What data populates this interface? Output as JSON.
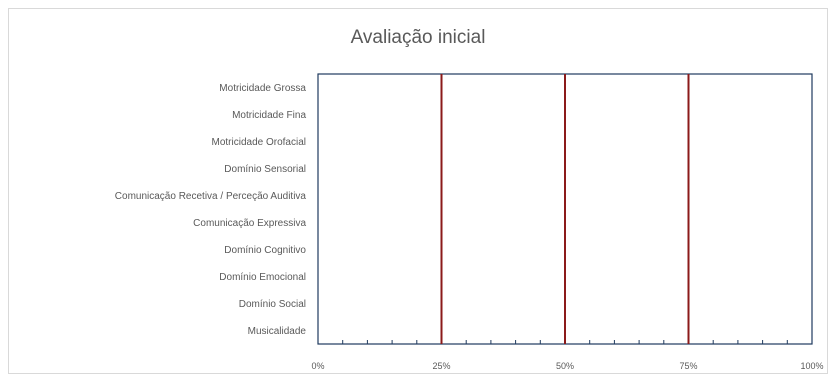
{
  "chart_data": {
    "type": "bar",
    "orientation": "horizontal",
    "title": "Avaliação inicial",
    "categories": [
      "Motricidade Grossa",
      "Motricidade Fina",
      "Motricidade Orofacial",
      "Domínio Sensorial",
      "Comunicação Recetiva / Perceção Auditiva",
      "Comunicação Expressiva",
      "Domínio Cognitivo",
      "Domínio Emocional",
      "Domínio Social",
      "Musicalidade"
    ],
    "values": [
      0,
      0,
      0,
      0,
      0,
      0,
      0,
      0,
      0,
      0
    ],
    "xlim": [
      0,
      1
    ],
    "x_ticks": [
      "0%",
      "25%",
      "50%",
      "75%",
      "100%"
    ],
    "x_tick_values": [
      0,
      0.25,
      0.5,
      0.75,
      1
    ],
    "reference_lines": [
      0.25,
      0.5,
      0.75
    ],
    "reference_line_color": "#8b1a1a",
    "axis_color": "#1f3a5f",
    "grid": false
  }
}
